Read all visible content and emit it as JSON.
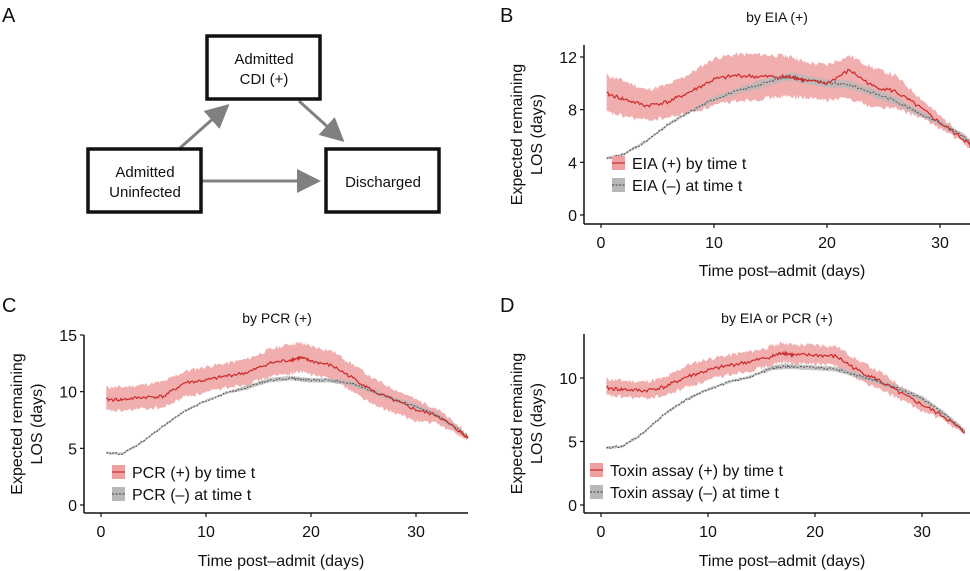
{
  "panel_labels": {
    "a": "A",
    "b": "B",
    "c": "C",
    "d": "D"
  },
  "diagram": {
    "nodes": {
      "uninfected": [
        "Admitted",
        "Uninfected"
      ],
      "cdi": [
        "Admitted",
        "CDI (+)"
      ],
      "discharged": [
        "Discharged"
      ]
    },
    "edges": [
      {
        "from": "uninfected",
        "to": "cdi"
      },
      {
        "from": "cdi",
        "to": "discharged"
      },
      {
        "from": "uninfected",
        "to": "discharged"
      }
    ],
    "colors": {
      "arrow": "#808080",
      "box": "#111111"
    }
  },
  "colors": {
    "pos_line": "#cc2a2a",
    "pos_band": "#eea0a0",
    "neg_line": "#555555",
    "neg_band": "#b8b8b8"
  },
  "chart_data": [
    {
      "id": "B",
      "type": "line",
      "title": "by EIA (+)",
      "xlabel": "Time post–admit (days)",
      "ylabel": [
        "Expected remaining",
        "LOS (days)"
      ],
      "xlim": [
        0,
        33
      ],
      "ylim": [
        0,
        12.5
      ],
      "xticks": [
        0,
        10,
        20,
        30
      ],
      "yticks": [
        0,
        4,
        8,
        12
      ],
      "legend": {
        "position": "bottom-left",
        "entries": [
          "EIA (+) by time t",
          "EIA (–) at time t"
        ]
      },
      "x": [
        0.5,
        2,
        4,
        6,
        8,
        10,
        12,
        14,
        16,
        17,
        18,
        20,
        22,
        24,
        26,
        28,
        30,
        32,
        33
      ],
      "series": [
        {
          "name": "EIA (+) by time t",
          "values": [
            9.2,
            8.8,
            8.3,
            8.6,
            9.4,
            10.3,
            10.6,
            10.5,
            10.5,
            10.5,
            10.2,
            10.0,
            11.0,
            9.8,
            9.4,
            8.3,
            7.0,
            5.8,
            5.1
          ],
          "lower": [
            7.8,
            7.5,
            7.2,
            7.4,
            7.8,
            8.3,
            8.7,
            8.8,
            9.0,
            9.0,
            8.9,
            8.7,
            8.9,
            8.2,
            8.1,
            7.5,
            6.6,
            5.5,
            4.8
          ],
          "upper": [
            10.6,
            10.2,
            9.5,
            9.9,
            10.8,
            11.9,
            12.2,
            12.2,
            12.1,
            12.0,
            11.6,
            11.4,
            12.1,
            11.2,
            10.6,
            9.1,
            7.5,
            6.2,
            5.4
          ]
        },
        {
          "name": "EIA (–) at time t",
          "values": [
            4.3,
            4.6,
            5.6,
            6.9,
            7.9,
            8.8,
            9.4,
            9.9,
            10.4,
            10.5,
            10.3,
            10.0,
            9.9,
            9.3,
            8.7,
            7.8,
            7.0,
            6.0,
            5.2
          ],
          "lower": [
            4.2,
            4.5,
            5.5,
            6.8,
            7.8,
            8.6,
            9.2,
            9.6,
            10.1,
            10.2,
            10.0,
            9.7,
            9.6,
            9.0,
            8.4,
            7.6,
            6.8,
            5.8,
            5.0
          ],
          "upper": [
            4.4,
            4.7,
            5.7,
            7.0,
            8.0,
            9.0,
            9.6,
            10.2,
            10.7,
            10.8,
            10.6,
            10.3,
            10.2,
            9.6,
            9.0,
            8.0,
            7.2,
            6.2,
            5.4
          ]
        }
      ]
    },
    {
      "id": "C",
      "type": "line",
      "title": "by PCR (+)",
      "xlabel": "Time post–admit (days)",
      "ylabel": [
        "Expected remaining",
        "LOS (days)"
      ],
      "xlim": [
        0,
        35
      ],
      "ylim": [
        0,
        15
      ],
      "xticks": [
        0,
        10,
        20,
        30
      ],
      "yticks": [
        0,
        5,
        10,
        15
      ],
      "legend": {
        "position": "bottom-left",
        "entries": [
          "PCR (+) by time t",
          "PCR (–) at time t"
        ]
      },
      "x": [
        0.5,
        2,
        4,
        6,
        8,
        10,
        12,
        14,
        16,
        18,
        19,
        20,
        22,
        24,
        26,
        28,
        30,
        32,
        34,
        35
      ],
      "series": [
        {
          "name": "PCR (+) by time t",
          "values": [
            9.3,
            9.3,
            9.5,
            9.6,
            10.8,
            11.0,
            11.4,
            11.7,
            12.5,
            12.8,
            13.0,
            12.7,
            12.3,
            11.2,
            10.0,
            9.2,
            8.4,
            7.9,
            6.6,
            5.9
          ],
          "lower": [
            8.3,
            8.3,
            8.5,
            8.6,
            9.6,
            9.9,
            10.4,
            10.7,
            11.3,
            11.6,
            11.8,
            11.5,
            11.1,
            10.0,
            8.8,
            8.1,
            7.4,
            7.2,
            6.2,
            5.7
          ],
          "upper": [
            10.4,
            10.4,
            10.6,
            10.9,
            11.8,
            12.2,
            12.5,
            12.9,
            13.7,
            14.2,
            14.3,
            14.0,
            13.6,
            12.4,
            11.1,
            10.2,
            9.3,
            8.5,
            7.0,
            6.1
          ]
        },
        {
          "name": "PCR (–) at time t",
          "values": [
            4.6,
            4.5,
            5.6,
            7.0,
            8.3,
            9.2,
            9.9,
            10.4,
            11.0,
            11.2,
            11.1,
            11.0,
            11.0,
            10.7,
            10.0,
            9.3,
            8.7,
            7.9,
            6.7,
            5.9
          ],
          "lower": [
            4.5,
            4.4,
            5.5,
            6.9,
            8.2,
            9.1,
            9.8,
            10.2,
            10.8,
            11.0,
            10.9,
            10.8,
            10.8,
            10.5,
            9.8,
            9.1,
            8.5,
            7.7,
            6.5,
            5.8
          ],
          "upper": [
            4.7,
            4.6,
            5.7,
            7.1,
            8.4,
            9.3,
            10.0,
            10.6,
            11.2,
            11.4,
            11.3,
            11.2,
            11.2,
            10.9,
            10.2,
            9.5,
            8.9,
            8.1,
            6.9,
            6.0
          ]
        }
      ]
    },
    {
      "id": "D",
      "type": "line",
      "title": "by EIA or PCR (+)",
      "xlabel": "Time post–admit (days)",
      "ylabel": [
        "Expected remaining",
        "LOS (days)"
      ],
      "xlim": [
        0,
        34
      ],
      "ylim": [
        0,
        13.5
      ],
      "xticks": [
        0,
        10,
        20,
        30
      ],
      "yticks": [
        0,
        5,
        10
      ],
      "legend": {
        "position": "bottom-left",
        "entries": [
          "Toxin assay (+) by time t",
          "Toxin assay (–) at time t"
        ]
      },
      "x": [
        0.5,
        2,
        4,
        6,
        8,
        10,
        12,
        14,
        16,
        17,
        18,
        20,
        22,
        24,
        26,
        28,
        30,
        32,
        34
      ],
      "series": [
        {
          "name": "Toxin assay (+) by time t",
          "values": [
            9.2,
            9.1,
            9.0,
            9.3,
            10.1,
            10.6,
            11.0,
            11.3,
            11.7,
            12.0,
            11.8,
            11.8,
            11.7,
            10.6,
            9.8,
            8.8,
            7.9,
            7.0,
            5.7
          ],
          "lower": [
            8.6,
            8.5,
            8.4,
            8.6,
            9.3,
            9.8,
            10.3,
            10.6,
            11.0,
            11.3,
            11.1,
            11.1,
            11.0,
            9.9,
            9.1,
            8.3,
            7.4,
            6.7,
            5.5
          ],
          "upper": [
            9.9,
            9.8,
            9.7,
            10.0,
            11.0,
            11.5,
            11.8,
            12.1,
            12.5,
            12.8,
            12.6,
            12.6,
            12.5,
            11.4,
            10.5,
            9.4,
            8.4,
            7.3,
            5.9
          ]
        },
        {
          "name": "Toxin assay (–) at time t",
          "values": [
            4.5,
            4.6,
            5.7,
            7.2,
            8.3,
            9.1,
            9.7,
            10.1,
            10.8,
            10.9,
            10.9,
            10.8,
            10.7,
            10.2,
            9.7,
            9.1,
            8.4,
            7.2,
            5.8
          ],
          "lower": [
            4.4,
            4.5,
            5.6,
            7.1,
            8.2,
            9.0,
            9.6,
            10.0,
            10.6,
            10.7,
            10.7,
            10.6,
            10.5,
            10.0,
            9.5,
            8.9,
            8.2,
            7.0,
            5.6
          ],
          "upper": [
            4.6,
            4.7,
            5.8,
            7.3,
            8.4,
            9.2,
            9.8,
            10.2,
            11.0,
            11.1,
            11.1,
            11.0,
            10.9,
            10.4,
            9.9,
            9.3,
            8.6,
            7.4,
            6.0
          ]
        }
      ]
    }
  ]
}
